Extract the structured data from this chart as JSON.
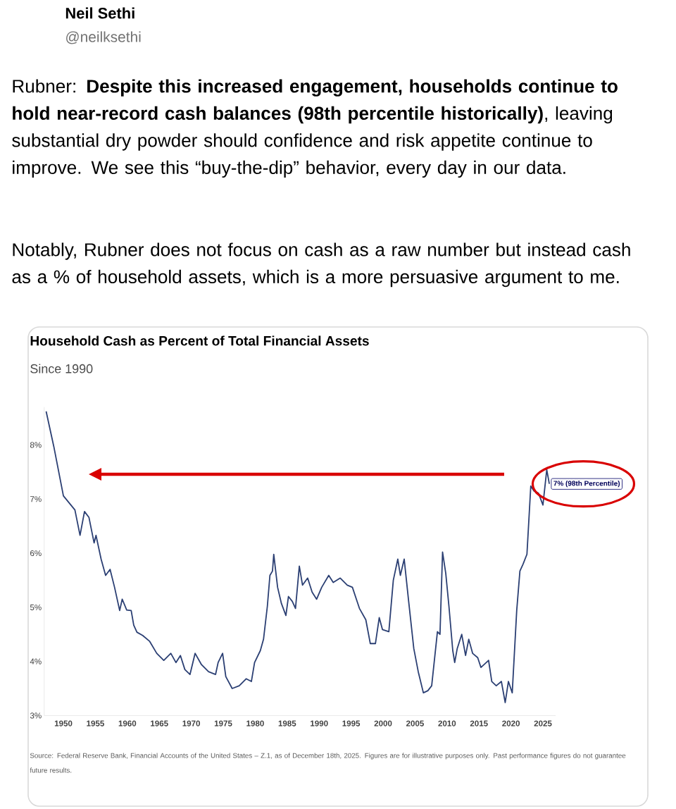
{
  "chart_data": {
    "type": "line",
    "title": "Household Cash as Percent of Total Financial Assets",
    "subtitle": "Since 1990",
    "x": [
      1947.3,
      1948.5,
      1950.0,
      1951.8,
      1952.6,
      1953.3,
      1954.0,
      1954.8,
      1955.1,
      1955.9,
      1956.6,
      1957.3,
      1958.0,
      1958.8,
      1959.2,
      1959.9,
      1960.6,
      1961.0,
      1961.5,
      1962.4,
      1963.5,
      1964.6,
      1965.7,
      1966.8,
      1967.6,
      1968.3,
      1969.0,
      1969.8,
      1970.6,
      1971.6,
      1972.7,
      1973.8,
      1974.2,
      1974.9,
      1975.4,
      1976.4,
      1977.5,
      1978.6,
      1979.4,
      1979.9,
      1980.8,
      1981.3,
      1981.9,
      1982.3,
      1982.7,
      1982.9,
      1983.5,
      1984.1,
      1984.8,
      1985.2,
      1985.8,
      1986.3,
      1986.9,
      1987.4,
      1988.2,
      1988.9,
      1989.6,
      1990.4,
      1991.5,
      1992.2,
      1993.3,
      1994.4,
      1995.2,
      1996.3,
      1997.3,
      1998.0,
      1998.8,
      1999.4,
      1999.9,
      2000.9,
      2001.6,
      2002.3,
      2002.7,
      2003.3,
      2004.0,
      2004.8,
      2005.5,
      2006.3,
      2007.0,
      2007.6,
      2008.5,
      2008.9,
      2009.3,
      2009.8,
      2010.3,
      2010.9,
      2011.2,
      2011.6,
      2012.3,
      2012.9,
      2013.4,
      2014.0,
      2014.8,
      2015.3,
      2016.5,
      2017.0,
      2017.7,
      2018.5,
      2019.1,
      2019.6,
      2020.2,
      2020.9,
      2021.4,
      2021.9,
      2022.5,
      2023.1,
      2023.6,
      2024.3,
      2025.0,
      2025.6,
      2026.0
    ],
    "series": [
      {
        "color": "#2b3f73",
        "values": [
          8.62,
          7.97,
          7.06,
          6.8,
          6.33,
          6.77,
          6.66,
          6.19,
          6.33,
          5.89,
          5.59,
          5.7,
          5.37,
          4.94,
          5.15,
          4.95,
          4.94,
          4.67,
          4.54,
          4.48,
          4.37,
          4.15,
          4.02,
          4.15,
          3.98,
          4.11,
          3.85,
          3.76,
          4.15,
          3.94,
          3.81,
          3.76,
          3.98,
          4.15,
          3.72,
          3.5,
          3.55,
          3.68,
          3.63,
          3.98,
          4.2,
          4.41,
          5.02,
          5.59,
          5.67,
          5.98,
          5.37,
          5.07,
          4.85,
          5.2,
          5.11,
          4.98,
          5.76,
          5.41,
          5.54,
          5.28,
          5.15,
          5.37,
          5.59,
          5.46,
          5.54,
          5.41,
          5.37,
          4.98,
          4.77,
          4.33,
          4.33,
          4.81,
          4.59,
          4.55,
          5.5,
          5.89,
          5.59,
          5.89,
          5.11,
          4.24,
          3.81,
          3.42,
          3.46,
          3.55,
          4.55,
          4.5,
          6.02,
          5.63,
          5.02,
          4.2,
          3.98,
          4.24,
          4.5,
          4.11,
          4.41,
          4.15,
          4.07,
          3.89,
          4.02,
          3.63,
          3.55,
          3.63,
          3.24,
          3.63,
          3.42,
          4.94,
          5.67,
          5.8,
          5.98,
          7.24,
          7.15,
          7.11,
          6.89,
          7.54,
          7.28
        ]
      }
    ],
    "xticks": [
      1950,
      1955,
      1960,
      1965,
      1970,
      1975,
      1980,
      1985,
      1990,
      1995,
      2000,
      2005,
      2010,
      2015,
      2020,
      2025
    ],
    "xlim": [
      1947,
      2027
    ],
    "ylim": [
      3,
      8.7
    ],
    "yticks": [
      {
        "value": 3,
        "label": "3%"
      },
      {
        "value": 4,
        "label": "4%"
      },
      {
        "value": 5,
        "label": "5%"
      },
      {
        "value": 6,
        "label": "6%"
      },
      {
        "value": 7,
        "label": "7%"
      },
      {
        "value": 8,
        "label": "8%"
      }
    ],
    "grid": false,
    "annotations": [
      "Neil Sethi",
      "@neilksethi",
      "Rubner: **Despite this increased engagement, households continue to hold near-record cash balances (98th percentile historically)**, leaving substantial dry powder should confidence and risk appetite continue to improve. We see this “buy-the-dip” behavior, every day in our data.",
      "Notably, Rubner does not focus on cash as a raw number but instead cash as a % of household assets, which is a more persuasive argument to me.",
      {
        "text": "7% (98th Percentile)",
        "x": 2025.6,
        "y": 7.54
      },
      "Source: Federal Reserve Bank, Financial Accounts of the United States – Z.1, as of December 18th, 2025. Figures are for illustrative purposes only. Past performance figures do not guarantee future results."
    ]
  }
}
